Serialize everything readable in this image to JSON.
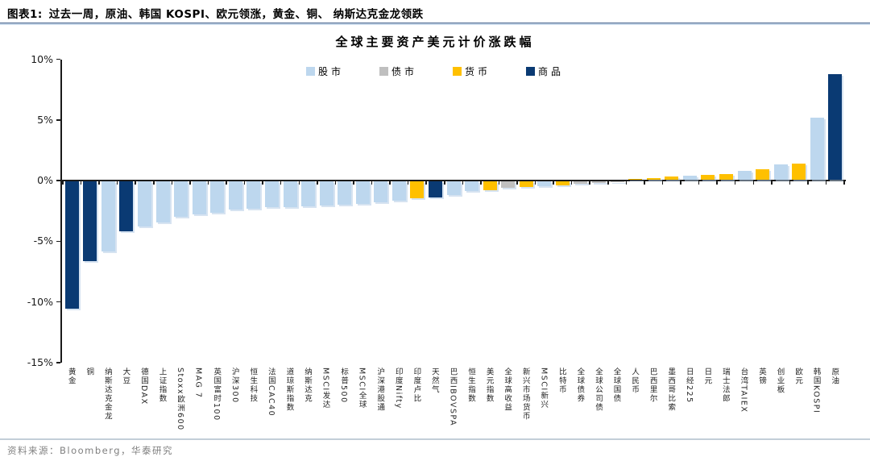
{
  "header": {
    "figure_label": "图表1:",
    "title": "过去一周，原油、韩国 KOSPI、欧元领涨，黄金、铜、 纳斯达克金龙领跌"
  },
  "footer": {
    "source": "资料来源：Bloomberg，华泰研究"
  },
  "chart_data": {
    "type": "bar",
    "title": "全球主要资产美元计价涨跌幅",
    "xlabel": "",
    "ylabel": "",
    "ylim": [
      -15,
      10
    ],
    "grid": false,
    "legend_position": "top",
    "yticks": [
      {
        "value": 10,
        "label": "10%"
      },
      {
        "value": 5,
        "label": "5%"
      },
      {
        "value": 0,
        "label": "0%"
      },
      {
        "value": -5,
        "label": "-5%"
      },
      {
        "value": -10,
        "label": "-10%"
      },
      {
        "value": -15,
        "label": "-15%"
      }
    ],
    "legend": [
      {
        "label": "股市",
        "type": "stock"
      },
      {
        "label": "债市",
        "type": "bond"
      },
      {
        "label": "货币",
        "type": "currency"
      },
      {
        "label": "商品",
        "type": "commodity"
      }
    ],
    "colors": {
      "stock": "#BDD7EE",
      "bond": "#BFBFBF",
      "currency": "#FFC000",
      "commodity": "#0A3A73"
    },
    "bars": [
      {
        "label": "黄金",
        "type": "commodity",
        "value": -10.5
      },
      {
        "label": "铜",
        "type": "commodity",
        "value": -6.6
      },
      {
        "label": "纳斯达克金龙",
        "type": "stock",
        "value": -5.8
      },
      {
        "label": "大豆",
        "type": "commodity",
        "value": -4.1
      },
      {
        "label": "德国DAX",
        "type": "stock",
        "value": -3.7
      },
      {
        "label": "上证指数",
        "type": "stock",
        "value": -3.4
      },
      {
        "label": "Stoxx欧洲600",
        "type": "stock",
        "value": -2.9
      },
      {
        "label": "MAG 7",
        "type": "stock",
        "value": -2.7
      },
      {
        "label": "英国富时100",
        "type": "stock",
        "value": -2.6
      },
      {
        "label": "沪深300",
        "type": "stock",
        "value": -2.3
      },
      {
        "label": "恒生科技",
        "type": "stock",
        "value": -2.25
      },
      {
        "label": "法国CAC40",
        "type": "stock",
        "value": -2.15
      },
      {
        "label": "道琼斯指数",
        "type": "stock",
        "value": -2.1
      },
      {
        "label": "纳斯达克",
        "type": "stock",
        "value": -2.05
      },
      {
        "label": "MSCI发达",
        "type": "stock",
        "value": -2.0
      },
      {
        "label": "标普500",
        "type": "stock",
        "value": -1.95
      },
      {
        "label": "MSCI全球",
        "type": "stock",
        "value": -1.85
      },
      {
        "label": "沪深港股通",
        "type": "stock",
        "value": -1.7
      },
      {
        "label": "印度Nifty",
        "type": "stock",
        "value": -1.6
      },
      {
        "label": "印度卢比",
        "type": "currency",
        "value": -1.4
      },
      {
        "label": "天然气",
        "type": "commodity",
        "value": -1.35
      },
      {
        "label": "巴西IBOVSPA",
        "type": "stock",
        "value": -1.1
      },
      {
        "label": "恒生指数",
        "type": "stock",
        "value": -0.8
      },
      {
        "label": "美元指数",
        "type": "currency",
        "value": -0.75
      },
      {
        "label": "全球高收益",
        "type": "bond",
        "value": -0.55
      },
      {
        "label": "新兴市场货币",
        "type": "currency",
        "value": -0.45
      },
      {
        "label": "MSCI新兴",
        "type": "stock",
        "value": -0.4
      },
      {
        "label": "比特币",
        "type": "currency",
        "value": -0.3
      },
      {
        "label": "全球债券",
        "type": "bond",
        "value": -0.2
      },
      {
        "label": "全球公司债",
        "type": "bond",
        "value": -0.15
      },
      {
        "label": "全球国债",
        "type": "bond",
        "value": -0.05
      },
      {
        "label": "人民币",
        "type": "currency",
        "value": 0.05
      },
      {
        "label": "巴西里尔",
        "type": "currency",
        "value": 0.15
      },
      {
        "label": "墨西哥比索",
        "type": "currency",
        "value": 0.25
      },
      {
        "label": "日经225",
        "type": "stock",
        "value": 0.3
      },
      {
        "label": "日元",
        "type": "currency",
        "value": 0.4
      },
      {
        "label": "瑞士法郎",
        "type": "currency",
        "value": 0.45
      },
      {
        "label": "台湾TAIEX",
        "type": "stock",
        "value": 0.7
      },
      {
        "label": "英镑",
        "type": "currency",
        "value": 0.85
      },
      {
        "label": "创业板",
        "type": "stock",
        "value": 1.25
      },
      {
        "label": "欧元",
        "type": "currency",
        "value": 1.35
      },
      {
        "label": "韩国KOSPI",
        "type": "stock",
        "value": 5.1
      },
      {
        "label": "原油",
        "type": "commodity",
        "value": 8.7
      }
    ]
  }
}
